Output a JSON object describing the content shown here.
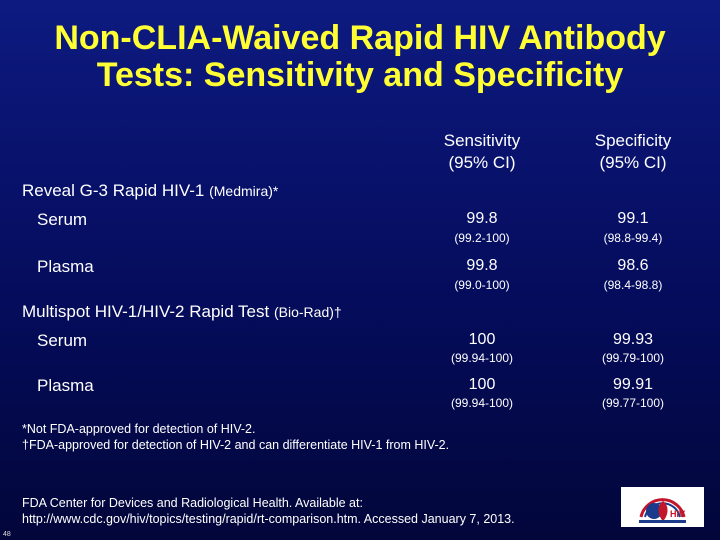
{
  "slide": {
    "title_line1": "Non-CLIA-Waived Rapid HIV Antibody",
    "title_line2": "Tests: Sensitivity and Specificity",
    "page_number": "48"
  },
  "table": {
    "headers": {
      "sensitivity_line1": "Sensitivity",
      "sensitivity_line2": "(95% CI)",
      "specificity_line1": "Specificity",
      "specificity_line2": "(95% CI)"
    },
    "products": [
      {
        "name": "Reveal G-3 Rapid HIV-1",
        "maker": "(Medmira)*",
        "rows": [
          {
            "sample": "Serum",
            "sens": "99.8",
            "sens_ci": "(99.2-100)",
            "spec": "99.1",
            "spec_ci": "(98.8-99.4)"
          },
          {
            "sample": "Plasma",
            "sens": "99.8",
            "sens_ci": "(99.0-100)",
            "spec": "98.6",
            "spec_ci": "(98.4-98.8)"
          }
        ]
      },
      {
        "name": "Multispot HIV-1/HIV-2 Rapid Test",
        "maker": "(Bio-Rad)†",
        "rows": [
          {
            "sample": "Serum",
            "sens": "100",
            "sens_ci": "(99.94-100)",
            "spec": "99.93",
            "spec_ci": "(99.79-100)"
          },
          {
            "sample": "Plasma",
            "sens": "100",
            "sens_ci": "(99.94-100)",
            "spec": "99.91",
            "spec_ci": "(99.77-100)"
          }
        ]
      }
    ]
  },
  "footnotes": {
    "line1": "*Not FDA-approved for detection of HIV-2.",
    "line2": "†FDA-approved for detection of HIV-2 and can differentiate HIV-1 from HIV-2."
  },
  "source": {
    "line1": "FDA Center for Devices and Radiological Health. Available at:",
    "line2": "http://www.cdc.gov/hiv/topics/testing/rapid/rt-comparison.htm.  Accessed January 7, 2013."
  },
  "logo": {
    "icon": "hiv-program-logo-icon",
    "text": "HIV"
  }
}
